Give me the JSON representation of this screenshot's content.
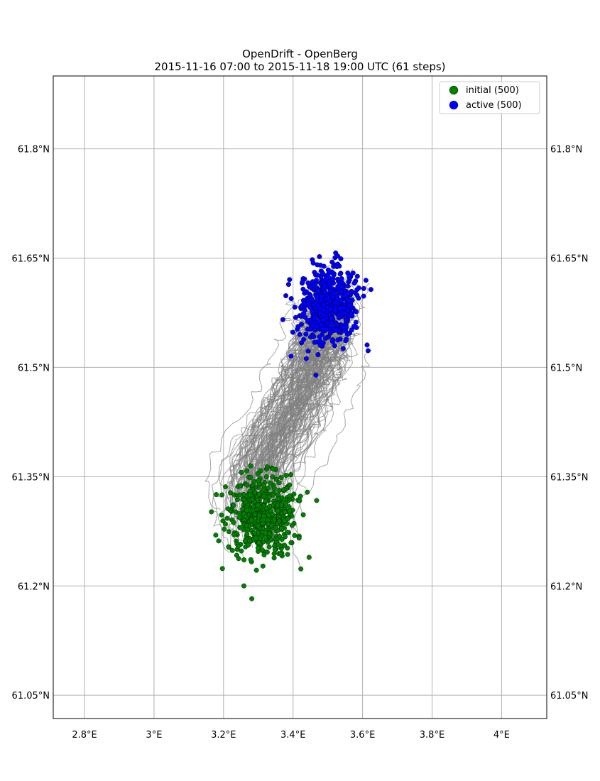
{
  "title": {
    "line1": "OpenDrift - OpenBerg",
    "line2": "2015-11-16 07:00 to 2015-11-18 19:00 UTC (61 steps)"
  },
  "chart_data": {
    "type": "scatter",
    "title": "OpenDrift - OpenBerg",
    "subtitle": "2015-11-16 07:00 to 2015-11-18 19:00 UTC (61 steps)",
    "xlim": [
      2.71,
      4.13
    ],
    "ylim": [
      61.018,
      61.9
    ],
    "grid": true,
    "legend_position": "top-right",
    "x_ticks": [
      {
        "value": 2.8,
        "label": "2.8°E"
      },
      {
        "value": 3.0,
        "label": "3°E"
      },
      {
        "value": 3.2,
        "label": "3.2°E"
      },
      {
        "value": 3.4,
        "label": "3.4°E"
      },
      {
        "value": 3.6,
        "label": "3.6°E"
      },
      {
        "value": 3.8,
        "label": "3.8°E"
      },
      {
        "value": 4.0,
        "label": "4°E"
      }
    ],
    "y_ticks": [
      {
        "value": 61.05,
        "label": "61.05°N"
      },
      {
        "value": 61.2,
        "label": "61.2°N"
      },
      {
        "value": 61.35,
        "label": "61.35°N"
      },
      {
        "value": 61.5,
        "label": "61.5°N"
      },
      {
        "value": 61.65,
        "label": "61.65°N"
      },
      {
        "value": 61.8,
        "label": "61.8°N"
      }
    ],
    "series": [
      {
        "name": "initial (500)",
        "color": "#008000",
        "count": 500,
        "center": [
          3.31,
          61.295
        ],
        "spread": [
          0.05,
          0.028
        ]
      },
      {
        "name": "active (500)",
        "color": "#0000ff",
        "count": 500,
        "center": [
          3.5,
          61.585
        ],
        "spread": [
          0.042,
          0.025
        ]
      }
    ],
    "trajectory_color": "#808080",
    "trajectory_count": 140
  }
}
